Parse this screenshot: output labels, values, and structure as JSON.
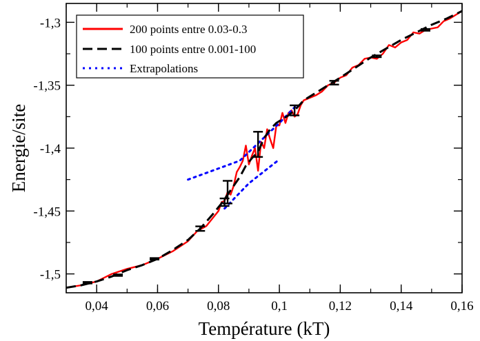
{
  "chart_data": {
    "type": "line",
    "title": "",
    "xlabel": "Température (kT)",
    "ylabel": "Energie/site",
    "xlim": [
      0.03,
      0.16
    ],
    "ylim": [
      -1.515,
      -1.285
    ],
    "grid": false,
    "legend_position": "top-left",
    "x_ticks": [
      {
        "value": 0.04,
        "label": "0,04"
      },
      {
        "value": 0.06,
        "label": "0,06"
      },
      {
        "value": 0.08,
        "label": "0,08"
      },
      {
        "value": 0.1,
        "label": "0,1"
      },
      {
        "value": 0.12,
        "label": "0,12"
      },
      {
        "value": 0.14,
        "label": "0,14"
      },
      {
        "value": 0.16,
        "label": "0,16"
      }
    ],
    "y_ticks": [
      {
        "value": -1.5,
        "label": "-1,5"
      },
      {
        "value": -1.45,
        "label": "-1,45"
      },
      {
        "value": -1.4,
        "label": "-1,4"
      },
      {
        "value": -1.35,
        "label": "-1,35"
      },
      {
        "value": -1.3,
        "label": "-1,3"
      }
    ],
    "series": [
      {
        "name": "200 points entre 0.03-0.3",
        "color": "#ff0000",
        "style": "solid",
        "x": [
          0.03,
          0.035,
          0.04,
          0.045,
          0.05,
          0.055,
          0.06,
          0.065,
          0.07,
          0.073,
          0.076,
          0.078,
          0.08,
          0.081,
          0.082,
          0.083,
          0.084,
          0.085,
          0.086,
          0.087,
          0.088,
          0.089,
          0.09,
          0.091,
          0.092,
          0.093,
          0.094,
          0.095,
          0.096,
          0.097,
          0.098,
          0.099,
          0.1,
          0.101,
          0.102,
          0.103,
          0.104,
          0.105,
          0.106,
          0.107,
          0.108,
          0.11,
          0.112,
          0.114,
          0.116,
          0.118,
          0.12,
          0.122,
          0.124,
          0.126,
          0.128,
          0.13,
          0.132,
          0.134,
          0.136,
          0.138,
          0.14,
          0.142,
          0.144,
          0.146,
          0.148,
          0.15,
          0.152,
          0.154,
          0.156,
          0.158,
          0.16
        ],
        "y": [
          -1.511,
          -1.509,
          -1.506,
          -1.5,
          -1.496,
          -1.493,
          -1.488,
          -1.482,
          -1.474,
          -1.466,
          -1.462,
          -1.456,
          -1.45,
          -1.443,
          -1.442,
          -1.435,
          -1.437,
          -1.43,
          -1.419,
          -1.415,
          -1.41,
          -1.398,
          -1.413,
          -1.406,
          -1.4,
          -1.418,
          -1.395,
          -1.4,
          -1.385,
          -1.393,
          -1.4,
          -1.382,
          -1.382,
          -1.372,
          -1.38,
          -1.372,
          -1.37,
          -1.375,
          -1.373,
          -1.366,
          -1.362,
          -1.36,
          -1.358,
          -1.355,
          -1.35,
          -1.348,
          -1.344,
          -1.342,
          -1.336,
          -1.334,
          -1.329,
          -1.328,
          -1.329,
          -1.325,
          -1.318,
          -1.32,
          -1.316,
          -1.314,
          -1.308,
          -1.309,
          -1.306,
          -1.305,
          -1.304,
          -1.299,
          -1.297,
          -1.294,
          -1.291
        ]
      },
      {
        "name": "100 points entre 0.001-100",
        "color": "#000000",
        "style": "dashed",
        "x": [
          0.03,
          0.035,
          0.04,
          0.045,
          0.05,
          0.055,
          0.06,
          0.065,
          0.07,
          0.074,
          0.078,
          0.081,
          0.083,
          0.085,
          0.087,
          0.089,
          0.091,
          0.093,
          0.095,
          0.097,
          0.099,
          0.101,
          0.103,
          0.105,
          0.108,
          0.112,
          0.116,
          0.12,
          0.125,
          0.13,
          0.135,
          0.14,
          0.145,
          0.15,
          0.155,
          0.16
        ],
        "y": [
          -1.511,
          -1.509,
          -1.506,
          -1.502,
          -1.497,
          -1.493,
          -1.488,
          -1.481,
          -1.473,
          -1.464,
          -1.453,
          -1.444,
          -1.437,
          -1.43,
          -1.423,
          -1.414,
          -1.408,
          -1.403,
          -1.392,
          -1.385,
          -1.38,
          -1.377,
          -1.374,
          -1.37,
          -1.362,
          -1.356,
          -1.35,
          -1.344,
          -1.336,
          -1.328,
          -1.321,
          -1.314,
          -1.308,
          -1.302,
          -1.297,
          -1.291
        ]
      },
      {
        "name": "Extrapolations",
        "color": "#0000ff",
        "style": "dotted",
        "segments": [
          {
            "x": [
              0.07,
              0.087,
              0.1,
              0.106
            ],
            "y": [
              -1.425,
              -1.41,
              -1.38,
              -1.365
            ]
          },
          {
            "x": [
              0.082,
              0.09,
              0.1
            ],
            "y": [
              -1.448,
              -1.428,
              -1.409
            ]
          }
        ]
      }
    ],
    "error_bars": [
      {
        "x": 0.037,
        "y": -1.507,
        "err": 0.0006
      },
      {
        "x": 0.047,
        "y": -1.501,
        "err": 0.0006
      },
      {
        "x": 0.059,
        "y": -1.488,
        "err": 0.0006
      },
      {
        "x": 0.074,
        "y": -1.464,
        "err": 0.0018
      },
      {
        "x": 0.082,
        "y": -1.443,
        "err": 0.003
      },
      {
        "x": 0.083,
        "y": -1.435,
        "err": 0.009
      },
      {
        "x": 0.093,
        "y": -1.397,
        "err": 0.01
      },
      {
        "x": 0.105,
        "y": -1.37,
        "err": 0.004
      },
      {
        "x": 0.118,
        "y": -1.348,
        "err": 0.0015
      },
      {
        "x": 0.132,
        "y": -1.327,
        "err": 0.0007
      },
      {
        "x": 0.148,
        "y": -1.306,
        "err": 0.0007
      }
    ]
  }
}
